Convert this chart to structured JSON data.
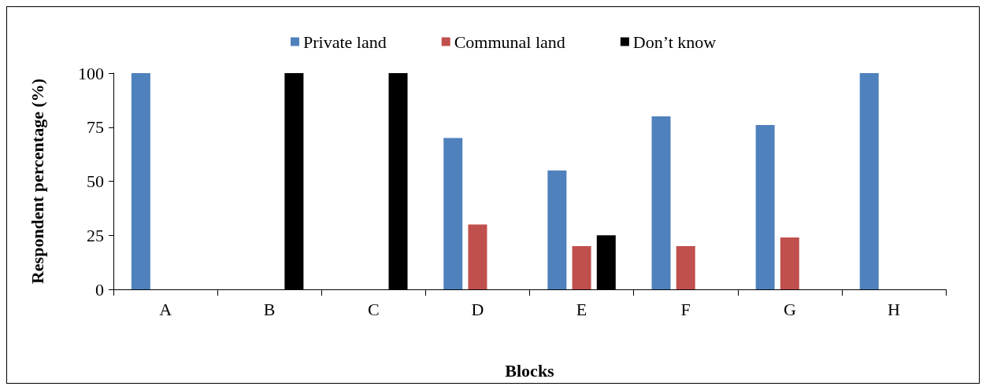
{
  "chart_data": {
    "type": "bar",
    "xlabel": "Blocks",
    "ylabel": "Respondent percentage (%)",
    "categories": [
      "A",
      "B",
      "C",
      "D",
      "E",
      "F",
      "G",
      "H"
    ],
    "series": [
      {
        "name": "Private land",
        "color": "#4f81bd",
        "values": [
          100,
          0,
          0,
          70,
          55,
          80,
          76,
          100
        ]
      },
      {
        "name": "Communal land",
        "color": "#c0504d",
        "values": [
          0,
          0,
          0,
          30,
          20,
          20,
          24,
          0
        ]
      },
      {
        "name": "Don’t know",
        "color": "#000000",
        "values": [
          0,
          100,
          100,
          0,
          25,
          0,
          0,
          0
        ]
      }
    ],
    "ylim": [
      0,
      100
    ],
    "yticks": [
      0,
      25,
      50,
      75,
      100
    ],
    "grid": false,
    "legend": "top"
  }
}
